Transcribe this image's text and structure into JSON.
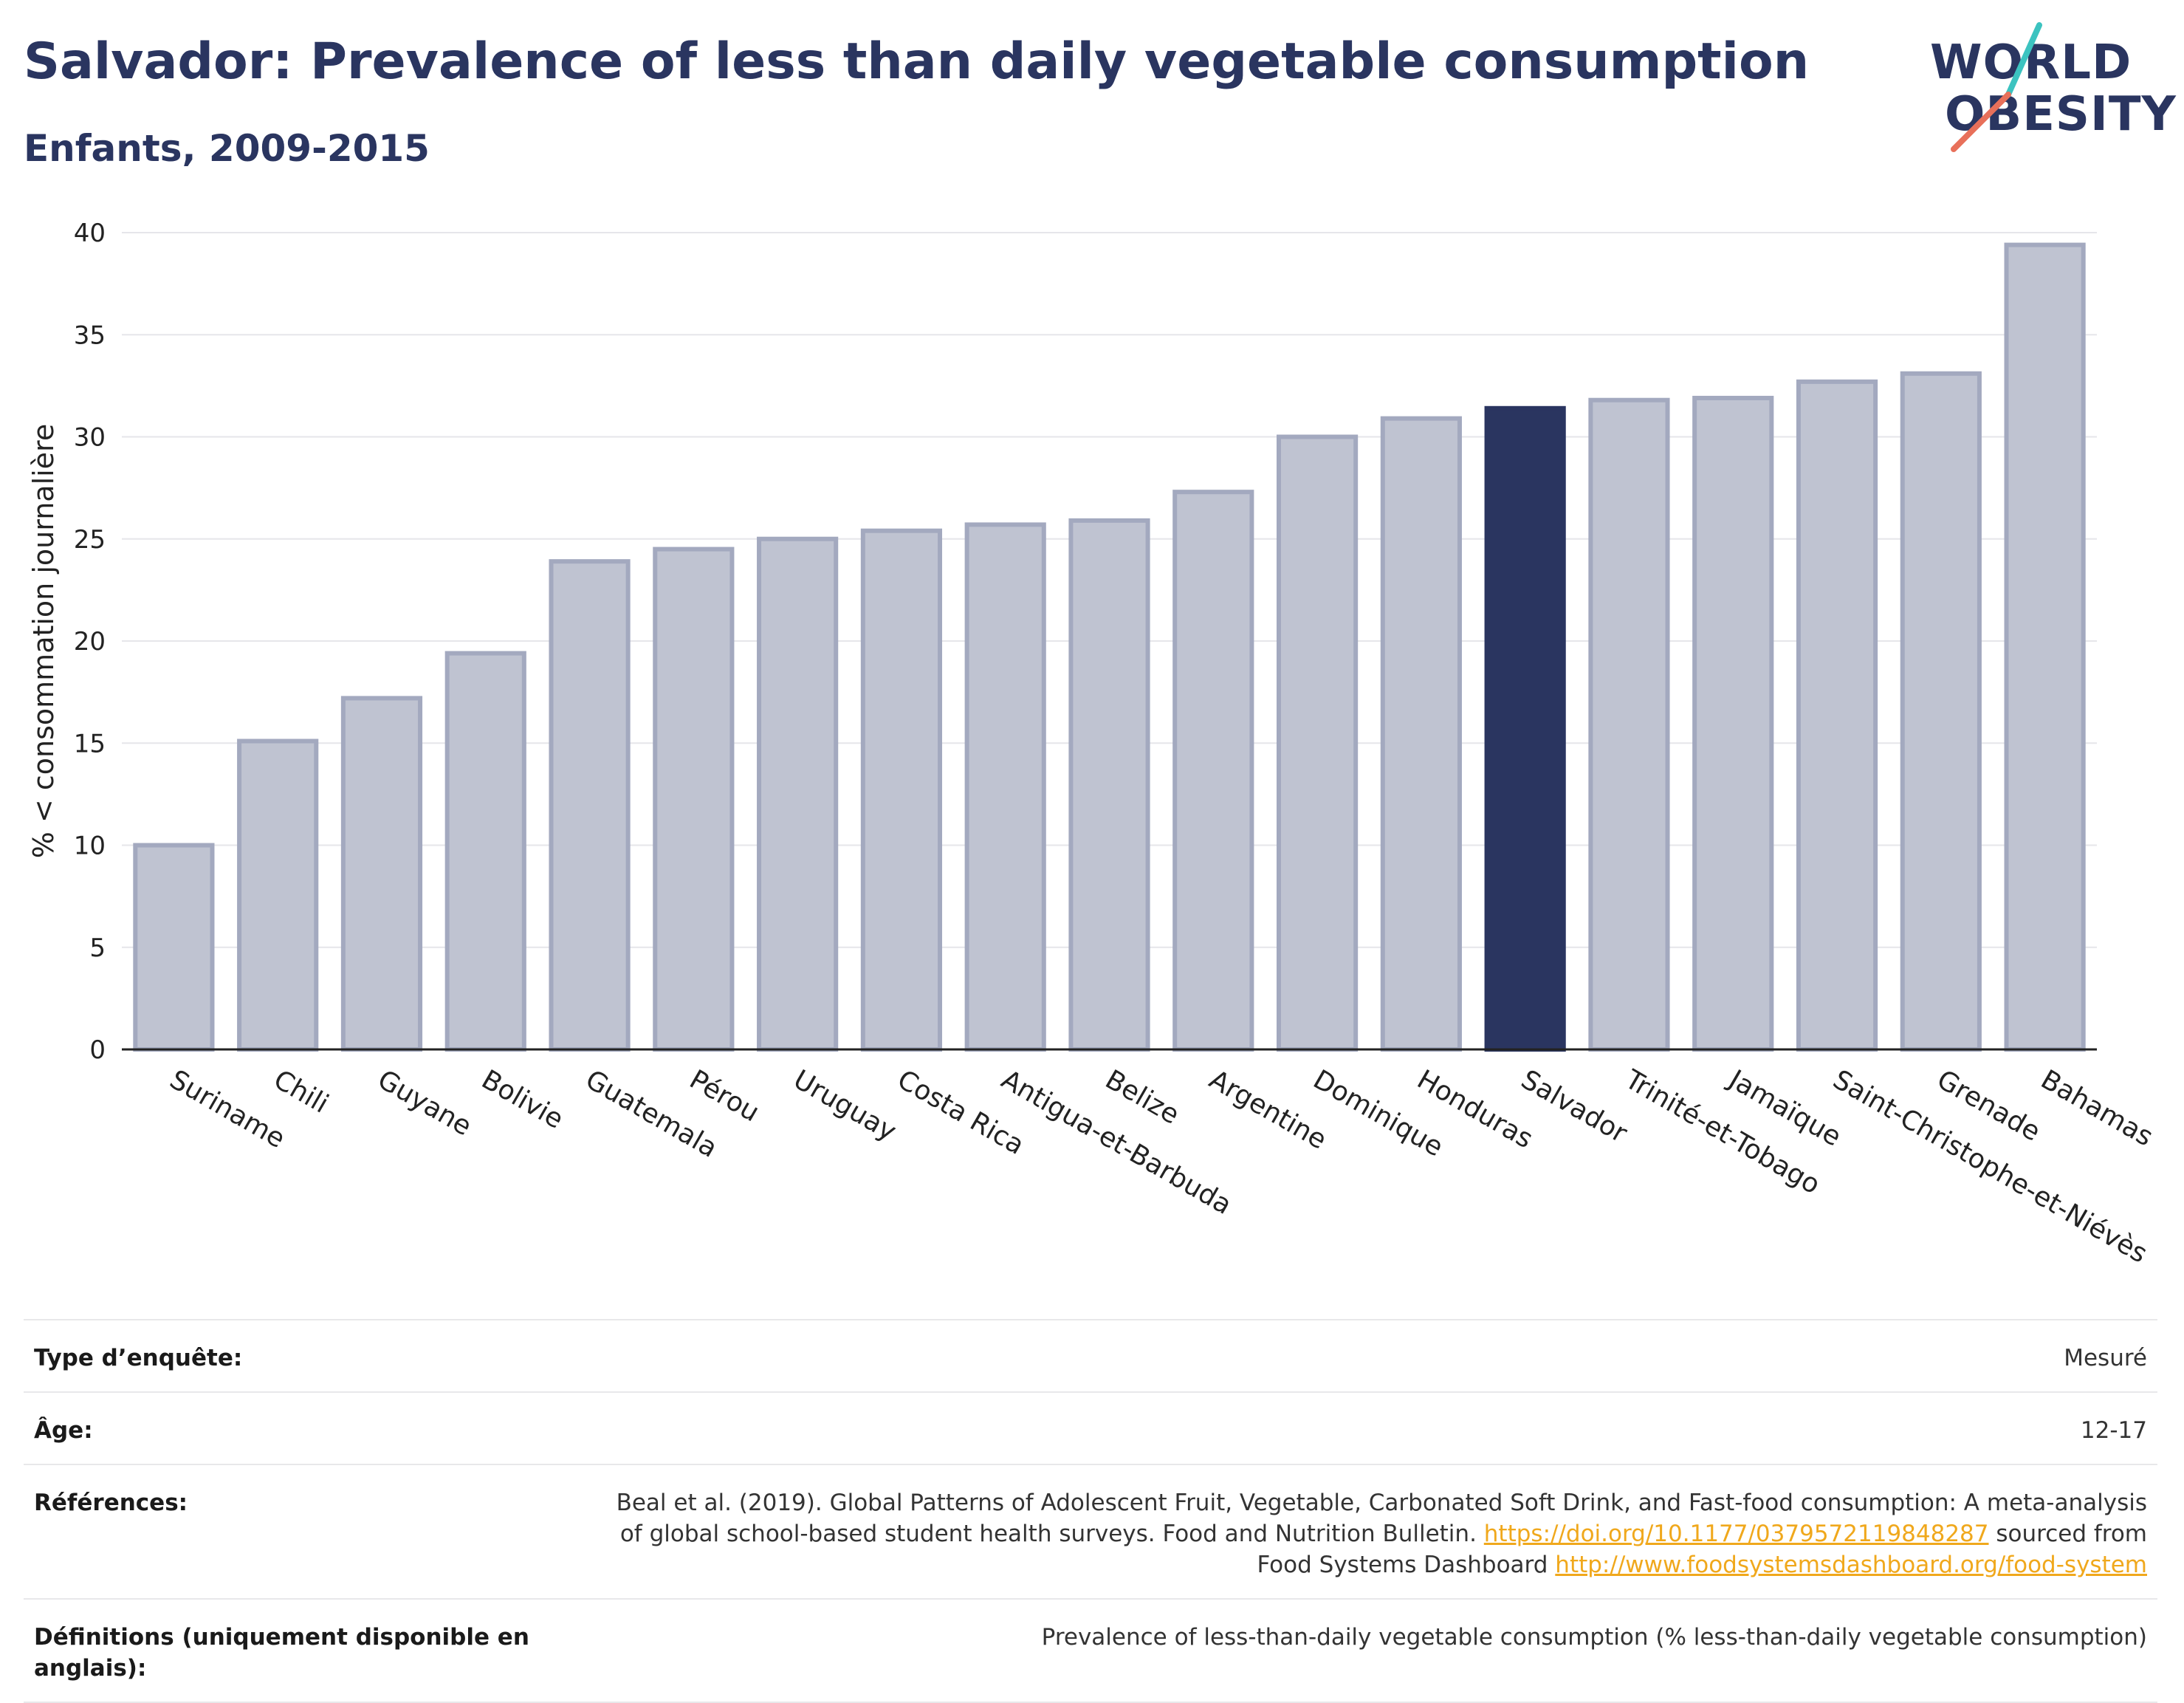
{
  "header": {
    "title": "Salvador: Prevalence of less than daily vegetable consumption",
    "subtitle": "Enfants, 2009-2015"
  },
  "logo": {
    "line1": "WORLD",
    "line2": "OBESITY",
    "colors": {
      "text": "#2a3560",
      "teal": "#3cc3c0",
      "coral": "#e8705a"
    }
  },
  "colors": {
    "bar": "#bfc3d1",
    "bar_stroke": "#a3a9bf",
    "highlight": "#2a3560",
    "grid": "#e6e6ea",
    "axis": "#222222"
  },
  "chart_data": {
    "type": "bar",
    "ylabel": "% < consommation journalière",
    "xlabel": "",
    "ylim": [
      0,
      40
    ],
    "yticks": [
      0,
      5,
      10,
      15,
      20,
      25,
      30,
      35,
      40
    ],
    "grid": true,
    "highlight": "Salvador",
    "categories": [
      "Suriname",
      "Chili",
      "Guyane",
      "Bolivie",
      "Guatemala",
      "Pérou",
      "Uruguay",
      "Costa Rica",
      "Antigua-et-Barbuda",
      "Belize",
      "Argentine",
      "Dominique",
      "Honduras",
      "Salvador",
      "Trinité-et-Tobago",
      "Jamaïque",
      "Saint-Christophe-et-Niévès",
      "Grenade",
      "Bahamas"
    ],
    "values": [
      10.0,
      15.1,
      17.2,
      19.4,
      23.9,
      24.5,
      25.0,
      25.4,
      25.7,
      25.9,
      27.3,
      30.0,
      30.9,
      31.4,
      31.8,
      31.9,
      32.7,
      33.1,
      39.4
    ]
  },
  "meta": {
    "rows": [
      {
        "key": "Type d’enquête:",
        "value": "Mesuré"
      },
      {
        "key": "Âge:",
        "value": "12-17"
      },
      {
        "key": "Références:",
        "value_parts": {
          "text1": "Beal et al. (2019). Global Patterns of Adolescent Fruit, Vegetable, Carbonated Soft Drink, and Fast-food consumption: A meta-analysis of global school-based student health surveys. Food and Nutrition Bulletin. ",
          "link1": "https://doi.org/10.1177/0379572119848287",
          "text2": " sourced from Food Systems Dashboard ",
          "link2": "http://www.foodsystemsdashboard.org/food-system"
        }
      },
      {
        "key": "Définitions (uniquement disponible en anglais):",
        "value": "Prevalence of less-than-daily vegetable consumption (% less-than-daily vegetable consumption)"
      }
    ]
  }
}
